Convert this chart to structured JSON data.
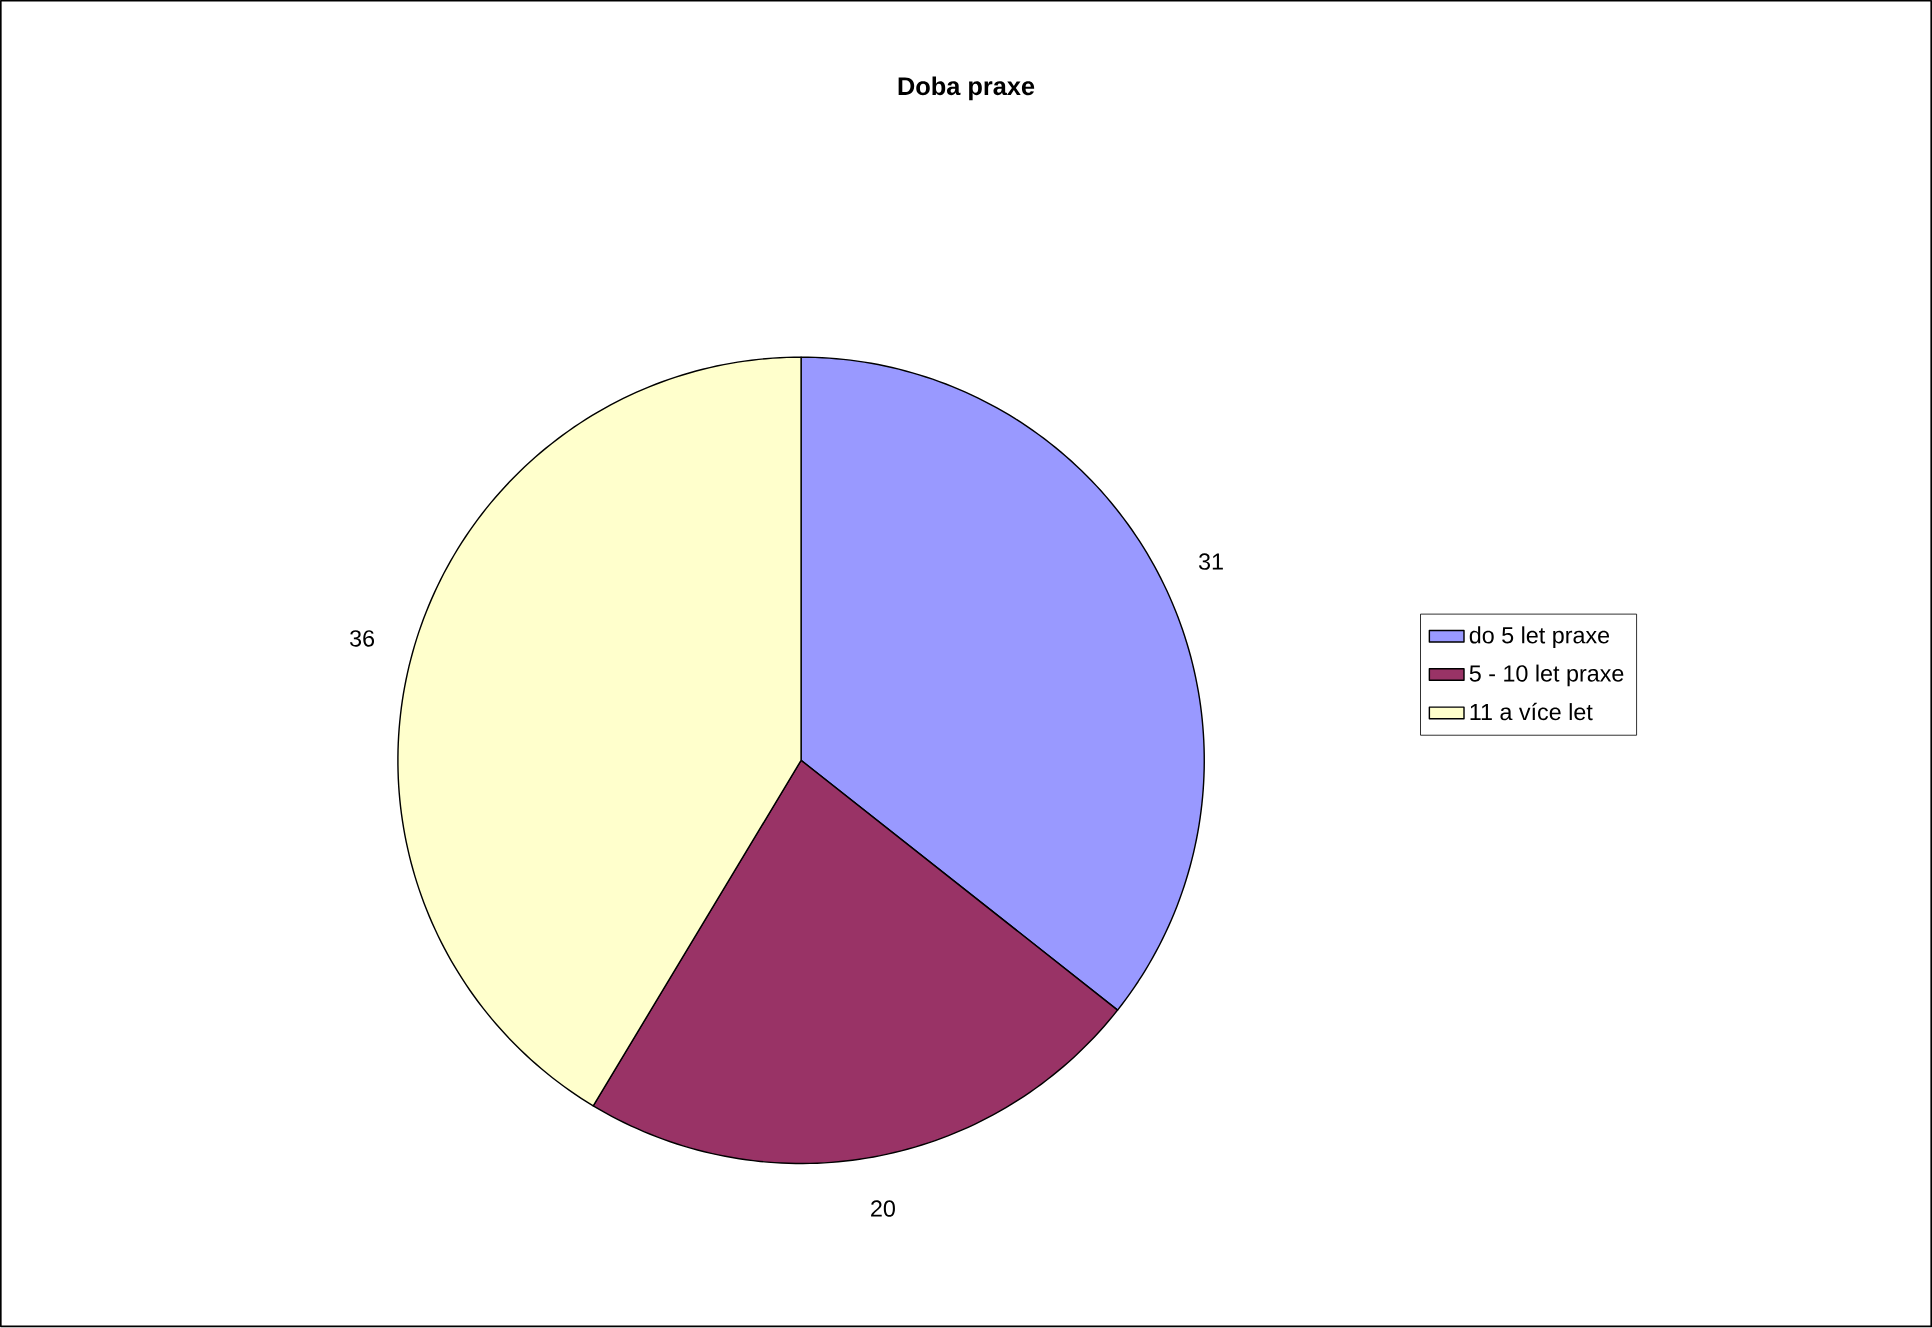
{
  "chart_data": {
    "type": "pie",
    "title": "Doba praxe",
    "categories": [
      "do 5 let praxe",
      "5 - 10 let praxe",
      "11 a více let"
    ],
    "values": [
      31,
      20,
      36
    ],
    "colors": [
      "#9999ff",
      "#993366",
      "#ffffcc"
    ],
    "data_labels": true,
    "legend": "right"
  }
}
